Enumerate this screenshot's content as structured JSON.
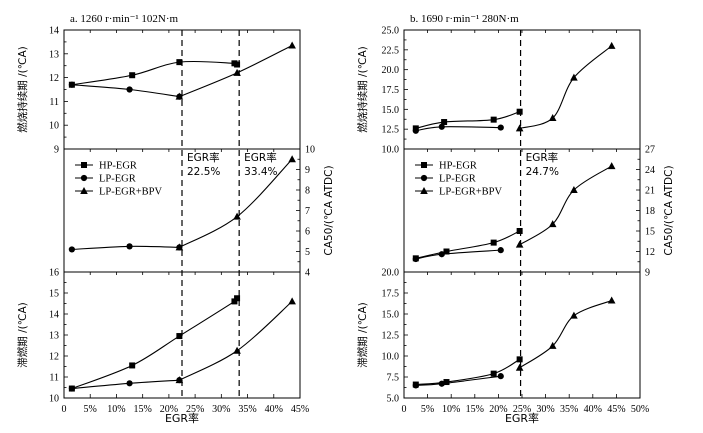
{
  "chart_data": [
    {
      "type": "line",
      "title": "a. 1260 r·min⁻¹ 102N·m",
      "xlabel": "EGR率",
      "xlim": [
        0,
        45
      ],
      "xticks": [
        0,
        5,
        10,
        15,
        20,
        25,
        30,
        35,
        40,
        45
      ],
      "xtick_labels": [
        "0",
        "5%",
        "10%",
        "15%",
        "20%",
        "25%",
        "30%",
        "35%",
        "40%",
        "45%"
      ],
      "vlines": [
        22.5,
        33.4
      ],
      "annotations": [
        {
          "text": "EGR率",
          "x": 22.5,
          "panel": 1,
          "row": 0
        },
        {
          "text": "22.5%",
          "x": 22.5,
          "panel": 1,
          "row": 1
        },
        {
          "text": "EGR率",
          "x": 33.4,
          "panel": 1,
          "row": 0
        },
        {
          "text": "33.4%",
          "x": 33.4,
          "panel": 1,
          "row": 1
        }
      ],
      "panels": [
        {
          "ylabel": "燃烧持续期 /(℃A)",
          "axis_side": "left",
          "ylim": [
            9,
            14
          ],
          "yticks": [
            "9",
            "10",
            "11",
            "12",
            "13",
            "14"
          ],
          "series": [
            {
              "name": "HP-EGR",
              "marker": "square",
              "x": [
                1.5,
                13.0,
                22.0,
                32.5,
                33.0
              ],
              "y": [
                11.7,
                12.1,
                12.65,
                12.6,
                12.55
              ]
            },
            {
              "name": "LP-EGR",
              "marker": "circle",
              "x": [
                1.5,
                12.5,
                22.0
              ],
              "y": [
                11.7,
                11.5,
                11.2
              ]
            },
            {
              "name": "LP-EGR+BPV",
              "marker": "triangle",
              "x": [
                22.0,
                33.0,
                43.5
              ],
              "y": [
                11.2,
                12.2,
                13.35
              ]
            }
          ]
        },
        {
          "ylabel": "CA50/(℃A ATDC)",
          "axis_side": "right",
          "ylim": [
            4,
            10
          ],
          "yticks": [
            "4",
            "5",
            "6",
            "7",
            "8",
            "9",
            "10"
          ],
          "legend": "top-left",
          "series": [
            {
              "name": "HP-EGR",
              "marker": "square",
              "x": [],
              "y": []
            },
            {
              "name": "LP-EGR",
              "marker": "circle",
              "x": [
                1.5,
                12.5,
                22.0
              ],
              "y": [
                5.1,
                5.25,
                5.2
              ]
            },
            {
              "name": "LP-EGR+BPV",
              "marker": "triangle",
              "x": [
                22.0,
                33.0,
                43.5
              ],
              "y": [
                5.2,
                6.7,
                9.5
              ]
            }
          ]
        },
        {
          "ylabel": "滞燃期 /(℃A)",
          "axis_side": "left",
          "ylim": [
            10,
            16
          ],
          "yticks": [
            "10",
            "11",
            "12",
            "13",
            "14",
            "15",
            "16"
          ],
          "series": [
            {
              "name": "HP-EGR",
              "marker": "square",
              "x": [
                1.5,
                13.0,
                22.0,
                32.5,
                33.0
              ],
              "y": [
                10.45,
                11.55,
                12.95,
                14.6,
                14.75
              ]
            },
            {
              "name": "LP-EGR",
              "marker": "circle",
              "x": [
                1.5,
                12.5,
                22.0
              ],
              "y": [
                10.45,
                10.7,
                10.85
              ]
            },
            {
              "name": "LP-EGR+BPV",
              "marker": "triangle",
              "x": [
                22.0,
                33.0,
                43.5
              ],
              "y": [
                10.85,
                12.25,
                14.6
              ]
            }
          ]
        }
      ]
    },
    {
      "type": "line",
      "title": "b. 1690 r·min⁻¹ 280N·m",
      "xlabel": "EGR率",
      "xlim": [
        0,
        50
      ],
      "xticks": [
        0,
        5,
        10,
        15,
        20,
        25,
        30,
        35,
        40,
        45,
        50
      ],
      "xtick_labels": [
        "0",
        "5%",
        "10%",
        "15%",
        "20%",
        "25%",
        "30%",
        "35%",
        "40%",
        "45%",
        "50%"
      ],
      "vlines": [
        24.7
      ],
      "annotations": [
        {
          "text": "EGR率",
          "x": 24.7,
          "panel": 1,
          "row": 0
        },
        {
          "text": "24.7%",
          "x": 24.7,
          "panel": 1,
          "row": 1
        }
      ],
      "panels": [
        {
          "ylabel": "燃烧持续期 /(℃A)",
          "axis_side": "left",
          "ylim": [
            10,
            25
          ],
          "yticks": [
            "10.0",
            "12.5",
            "15.0",
            "17.5",
            "20.0",
            "22.5",
            "25.0"
          ],
          "series": [
            {
              "name": "HP-EGR",
              "marker": "square",
              "x": [
                2.5,
                8.5,
                19.0,
                24.5
              ],
              "y": [
                12.6,
                13.4,
                13.7,
                14.7
              ]
            },
            {
              "name": "LP-EGR",
              "marker": "circle",
              "x": [
                2.5,
                8.0,
                20.5
              ],
              "y": [
                12.3,
                12.8,
                12.7
              ]
            },
            {
              "name": "LP-EGR+BPV",
              "marker": "triangle",
              "x": [
                24.5,
                31.5,
                36.0,
                44.0
              ],
              "y": [
                12.6,
                13.9,
                19.0,
                23.0
              ]
            }
          ]
        },
        {
          "ylabel": "CA50/(℃A ATDC)",
          "axis_side": "right",
          "ylim": [
            9,
            27
          ],
          "yticks": [
            "9",
            "12",
            "15",
            "18",
            "21",
            "24",
            "27"
          ],
          "legend": "top-left",
          "series": [
            {
              "name": "HP-EGR",
              "marker": "square",
              "x": [
                2.5,
                9.0,
                19.0,
                24.5
              ],
              "y": [
                11.0,
                12.0,
                13.3,
                15.0
              ]
            },
            {
              "name": "LP-EGR",
              "marker": "circle",
              "x": [
                2.5,
                8.0,
                20.5
              ],
              "y": [
                10.9,
                11.6,
                12.2
              ]
            },
            {
              "name": "LP-EGR+BPV",
              "marker": "triangle",
              "x": [
                24.5,
                31.5,
                36.0,
                44.0
              ],
              "y": [
                13.0,
                16.0,
                21.0,
                24.5
              ]
            }
          ]
        },
        {
          "ylabel": "滞燃期 /(℃A)",
          "axis_side": "left",
          "ylim": [
            5,
            20
          ],
          "yticks": [
            "5.0",
            "7.5",
            "10.0",
            "12.5",
            "15.0",
            "17.5",
            "20.0"
          ],
          "series": [
            {
              "name": "HP-EGR",
              "marker": "square",
              "x": [
                2.5,
                9.0,
                19.0,
                24.5
              ],
              "y": [
                6.6,
                6.9,
                7.9,
                9.6
              ]
            },
            {
              "name": "LP-EGR",
              "marker": "circle",
              "x": [
                2.5,
                8.0,
                20.5
              ],
              "y": [
                6.5,
                6.7,
                7.6
              ]
            },
            {
              "name": "LP-EGR+BPV",
              "marker": "triangle",
              "x": [
                24.5,
                31.5,
                36.0,
                44.0
              ],
              "y": [
                8.6,
                11.2,
                14.8,
                16.6
              ]
            }
          ]
        }
      ]
    }
  ]
}
